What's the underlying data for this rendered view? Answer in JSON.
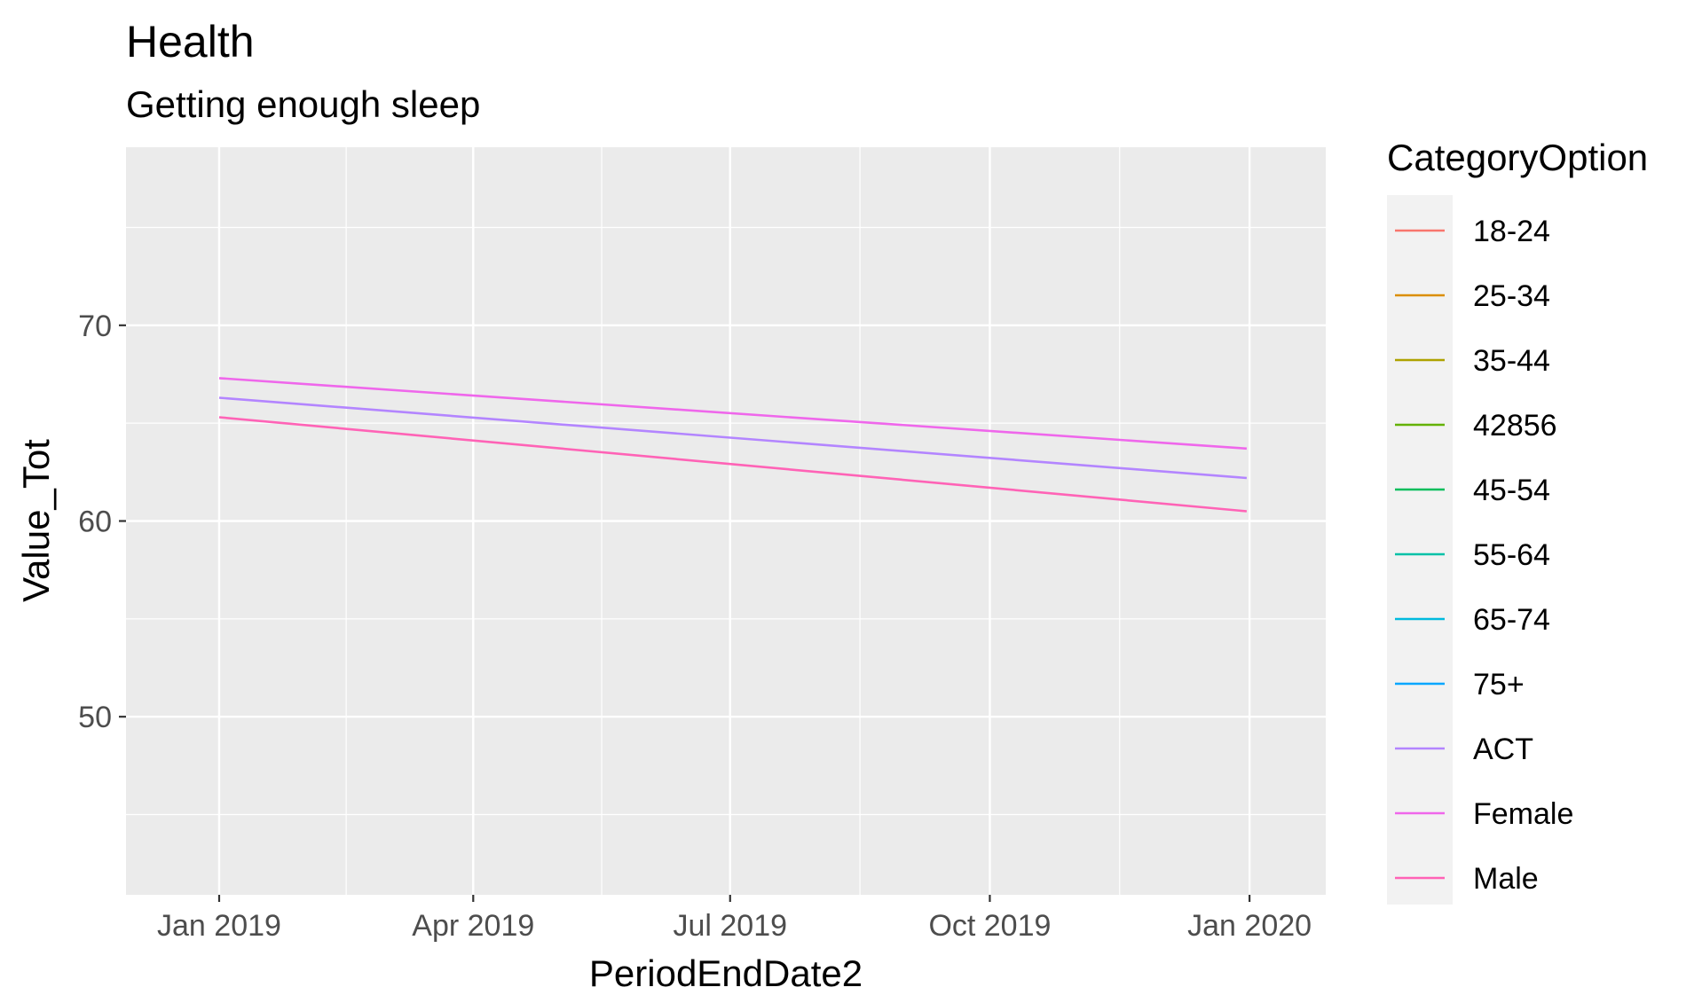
{
  "chart_data": {
    "type": "line",
    "title": "Health",
    "subtitle": "Getting enough sleep",
    "xlabel": "PeriodEndDate2",
    "ylabel": "Value_Tot",
    "x_type": "date",
    "xlim": [
      "2018-11-29",
      "2020-01-28"
    ],
    "ylim": [
      40.9,
      79.1
    ],
    "x_ticks": [
      {
        "date": "2019-01-01",
        "label": "Jan 2019"
      },
      {
        "date": "2019-04-01",
        "label": "Apr 2019"
      },
      {
        "date": "2019-07-01",
        "label": "Jul 2019"
      },
      {
        "date": "2019-10-01",
        "label": "Oct 2019"
      },
      {
        "date": "2020-01-01",
        "label": "Jan 2020"
      }
    ],
    "y_ticks": [
      50,
      60,
      70
    ],
    "grid": true,
    "panel_background": "#ebebeb",
    "legend": {
      "title": "CategoryOption",
      "position": "right",
      "entries": [
        {
          "label": "18-24",
          "color": "#F8766D"
        },
        {
          "label": "25-34",
          "color": "#DB8E00"
        },
        {
          "label": "35-44",
          "color": "#AEA200"
        },
        {
          "label": "42856",
          "color": "#64B200"
        },
        {
          "label": "45-54",
          "color": "#00BD5C"
        },
        {
          "label": "55-64",
          "color": "#00C1A7"
        },
        {
          "label": "65-74",
          "color": "#00BADE"
        },
        {
          "label": "75+",
          "color": "#00A6FF"
        },
        {
          "label": "ACT",
          "color": "#B385FF"
        },
        {
          "label": "Female",
          "color": "#EF67EB"
        },
        {
          "label": "Male",
          "color": "#FF63B6"
        }
      ]
    },
    "series": [
      {
        "name": "ACT",
        "color": "#B385FF",
        "x": [
          "2019-01-01",
          "2019-12-31"
        ],
        "values": [
          66.3,
          62.2
        ]
      },
      {
        "name": "Female",
        "color": "#EF67EB",
        "x": [
          "2019-01-01",
          "2019-12-31"
        ],
        "values": [
          67.3,
          63.7
        ]
      },
      {
        "name": "Male",
        "color": "#FF63B6",
        "x": [
          "2019-01-01",
          "2019-12-31"
        ],
        "values": [
          65.3,
          60.5
        ]
      }
    ]
  }
}
